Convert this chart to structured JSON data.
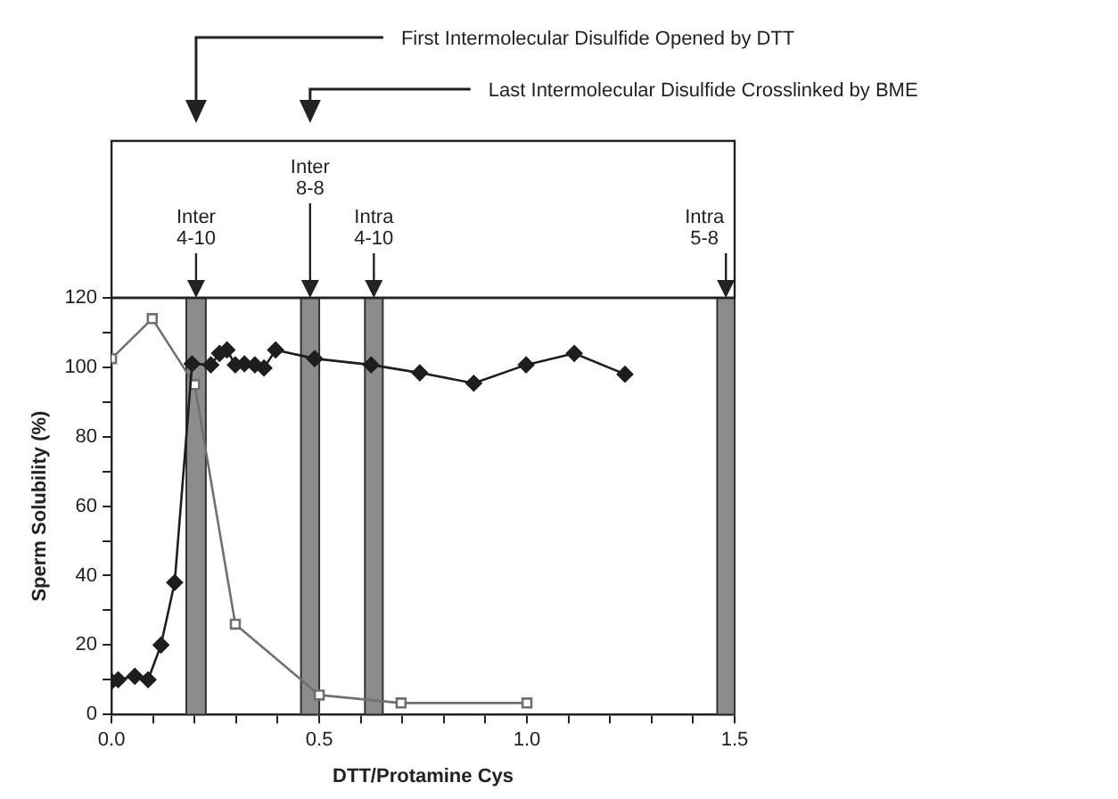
{
  "chart_data": {
    "type": "line",
    "xlabel": "DTT/Protamine Cys",
    "ylabel": "Sperm Solubility (%)",
    "xlim": [
      0,
      1.5
    ],
    "ylim": [
      0,
      120
    ],
    "xticks": [
      {
        "value": 0,
        "label": "0.0"
      },
      {
        "value": 0.1,
        "label": null
      },
      {
        "value": 0.2,
        "label": null
      },
      {
        "value": 0.3,
        "label": null
      },
      {
        "value": 0.4,
        "label": null
      },
      0.5,
      {
        "value": 0.6,
        "label": null
      },
      {
        "value": 0.7,
        "label": null
      },
      {
        "value": 0.8,
        "label": null
      },
      {
        "value": 0.9,
        "label": null
      },
      {
        "value": 1,
        "label": "1.0"
      },
      {
        "value": 1.1,
        "label": null
      },
      {
        "value": 1.2,
        "label": null
      },
      {
        "value": 1.3,
        "label": null
      },
      {
        "value": 1.4,
        "label": null
      },
      1.5
    ],
    "yticks": [
      0,
      {
        "value": 10,
        "label": null
      },
      20,
      {
        "value": 30,
        "label": null
      },
      40,
      {
        "value": 50,
        "label": null
      },
      60,
      {
        "value": 70,
        "label": null
      },
      80,
      {
        "value": 90,
        "label": null
      },
      100,
      {
        "value": 110,
        "label": null
      },
      120
    ],
    "series": [
      {
        "color": "#1e1e1e",
        "marker": "diamond",
        "x": [
          0,
          0.016,
          0.056,
          0.088,
          0.119,
          0.152,
          0.194,
          0.239,
          0.26,
          0.278,
          0.298,
          0.32,
          0.345,
          0.367,
          0.395,
          0.489,
          0.625,
          0.742,
          0.872,
          0.998,
          1.114,
          1.236
        ],
        "values": [
          9.5,
          10,
          11,
          10,
          20,
          38,
          101,
          100.7,
          104,
          105,
          100.7,
          101,
          100.7,
          99.8,
          105,
          102.5,
          100.7,
          98.4,
          95.4,
          100.7,
          104,
          98
        ]
      },
      {
        "color": "#707070",
        "marker": "square",
        "x": [
          0,
          0.098,
          0.2,
          0.298,
          0.5,
          0.697,
          1.0
        ],
        "values": [
          102.5,
          114,
          95,
          26,
          5.6,
          3.3,
          3.3
        ]
      }
    ],
    "bands": [
      {
        "axis": "x",
        "from": 0.18,
        "to": 0.227,
        "label": "Inter 4-10",
        "color": "#8c8c8c"
      },
      {
        "axis": "x",
        "from": 0.456,
        "to": 0.5,
        "label": "Inter 8-8",
        "color": "#8c8c8c"
      },
      {
        "axis": "x",
        "from": 0.61,
        "to": 0.653,
        "label": "Intra 4-10",
        "color": "#8c8c8c"
      },
      {
        "axis": "x",
        "from": 1.458,
        "to": 1.5,
        "label": "Intra 5-8",
        "color": "#8c8c8c"
      }
    ],
    "annotations": [
      "First Intermolecular Disulfide Opened by DTT",
      "Last Intermolecular Disulfide Crosslinked by BME"
    ],
    "grid": false,
    "legend": false,
    "line_style": "solid"
  }
}
